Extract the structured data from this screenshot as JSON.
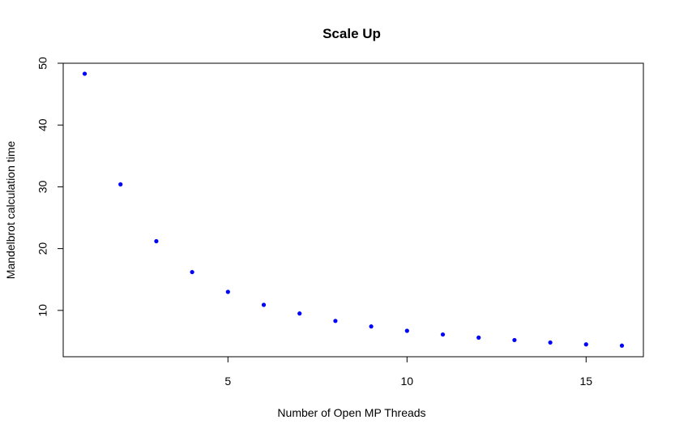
{
  "chart_data": {
    "type": "scatter",
    "title": "Scale Up",
    "xlabel": "Number of Open MP Threads",
    "ylabel": "Mandelbrot calculation time",
    "x": [
      1,
      2,
      3,
      4,
      5,
      6,
      7,
      8,
      9,
      10,
      11,
      12,
      13,
      14,
      15,
      16
    ],
    "y": [
      48.3,
      30.4,
      21.2,
      16.2,
      13.0,
      10.9,
      9.5,
      8.3,
      7.4,
      6.7,
      6.1,
      5.6,
      5.2,
      4.8,
      4.5,
      4.3
    ],
    "xlim": [
      0.4,
      16.6
    ],
    "ylim": [
      2.5,
      50.0
    ],
    "xticks": [
      5,
      10,
      15
    ],
    "yticks": [
      10,
      20,
      30,
      40,
      50
    ],
    "point_color": "#0000ff",
    "grid": false,
    "legend": "none"
  }
}
